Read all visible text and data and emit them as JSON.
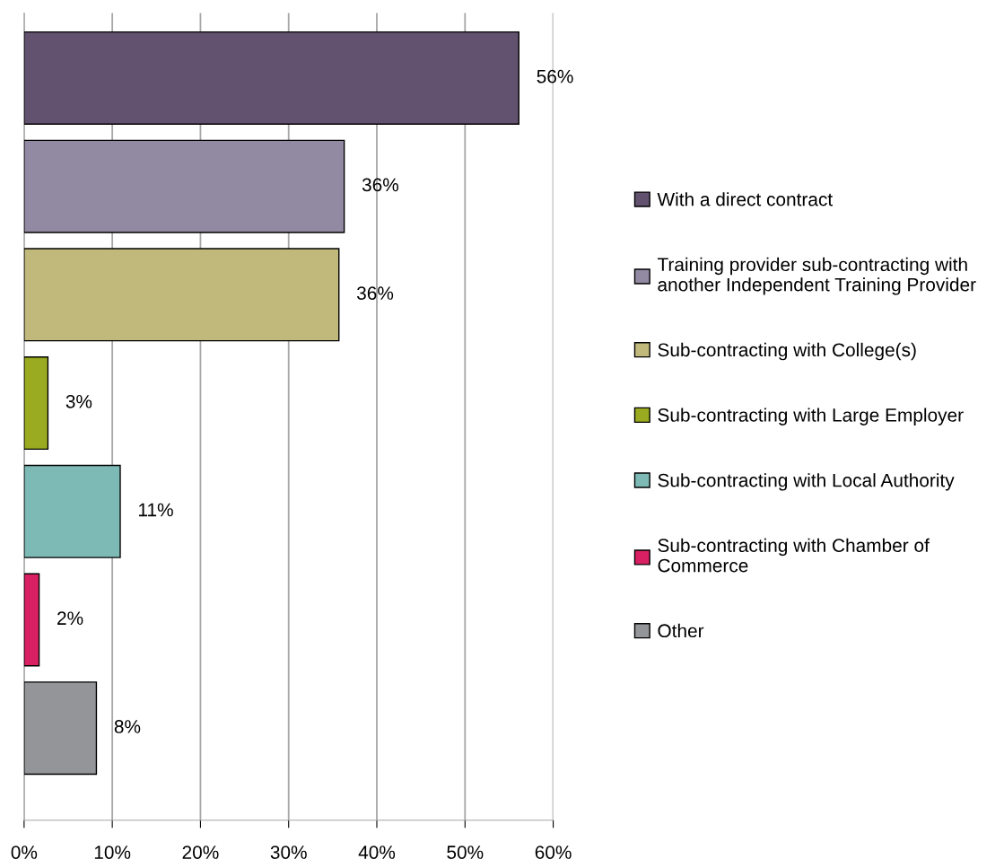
{
  "chart_data": {
    "type": "bar",
    "orientation": "horizontal",
    "categories": [
      null,
      null,
      null,
      null,
      null,
      null,
      null
    ],
    "series": [
      {
        "name": "With a direct contract",
        "color": "#62526f",
        "values": [
          56.1,
          null,
          null,
          null,
          null,
          null,
          null
        ],
        "value_labels": [
          "56%",
          null,
          null,
          null,
          null,
          null,
          null
        ]
      },
      {
        "name": "Training provider sub-contracting with another Independent Training Provider",
        "color": "#928aa3",
        "values": [
          null,
          36.3,
          null,
          null,
          null,
          null,
          null
        ],
        "value_labels": [
          null,
          "36%",
          null,
          null,
          null,
          null,
          null
        ]
      },
      {
        "name": "Sub-contracting with College(s)",
        "color": "#c1b97c",
        "values": [
          null,
          null,
          35.7,
          null,
          null,
          null,
          null
        ],
        "value_labels": [
          null,
          null,
          "36%",
          null,
          null,
          null,
          null
        ]
      },
      {
        "name": "Sub-contracting with Large Employer",
        "color": "#9aab21",
        "values": [
          null,
          null,
          null,
          2.7,
          null,
          null,
          null
        ],
        "value_labels": [
          null,
          null,
          null,
          "3%",
          null,
          null,
          null
        ]
      },
      {
        "name": "Sub-contracting with Local Authority",
        "color": "#7dbab6",
        "values": [
          null,
          null,
          null,
          null,
          10.9,
          null,
          null
        ],
        "value_labels": [
          null,
          null,
          null,
          null,
          "11%",
          null,
          null
        ]
      },
      {
        "name": "Sub-contracting with Chamber of Commerce",
        "color": "#d92063",
        "values": [
          null,
          null,
          null,
          null,
          null,
          1.7,
          null
        ],
        "value_labels": [
          null,
          null,
          null,
          null,
          null,
          "2%",
          null
        ]
      },
      {
        "name": "Other",
        "color": "#939598",
        "values": [
          null,
          null,
          null,
          null,
          null,
          null,
          8.2
        ],
        "value_labels": [
          null,
          null,
          null,
          null,
          null,
          null,
          "8%"
        ]
      }
    ],
    "xlim": [
      0,
      60
    ],
    "xticks": [
      {
        "value": 0,
        "label": "0%"
      },
      {
        "value": 10,
        "label": "10%"
      },
      {
        "value": 20,
        "label": "20%"
      },
      {
        "value": 30,
        "label": "30%"
      },
      {
        "value": 40,
        "label": "40%"
      },
      {
        "value": 50,
        "label": "50%"
      },
      {
        "value": 60,
        "label": "60%"
      }
    ],
    "grid": "x",
    "legend": "right"
  }
}
